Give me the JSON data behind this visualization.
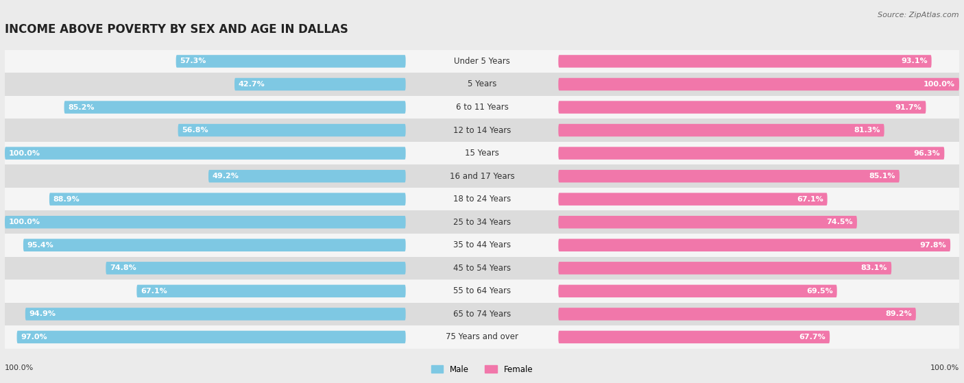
{
  "title": "INCOME ABOVE POVERTY BY SEX AND AGE IN DALLAS",
  "source": "Source: ZipAtlas.com",
  "categories": [
    "Under 5 Years",
    "5 Years",
    "6 to 11 Years",
    "12 to 14 Years",
    "15 Years",
    "16 and 17 Years",
    "18 to 24 Years",
    "25 to 34 Years",
    "35 to 44 Years",
    "45 to 54 Years",
    "55 to 64 Years",
    "65 to 74 Years",
    "75 Years and over"
  ],
  "male_values": [
    57.3,
    42.7,
    85.2,
    56.8,
    100.0,
    49.2,
    88.9,
    100.0,
    95.4,
    74.8,
    67.1,
    94.9,
    97.0
  ],
  "female_values": [
    93.1,
    100.0,
    91.7,
    81.3,
    96.3,
    85.1,
    67.1,
    74.5,
    97.8,
    83.1,
    69.5,
    89.2,
    67.7
  ],
  "male_color": "#7ec8e3",
  "female_color": "#f177aa",
  "male_label": "Male",
  "female_label": "Female",
  "x_max": 100.0,
  "bar_height": 0.55,
  "bg_color": "#ebebeb",
  "row_colors": [
    "#f5f5f5",
    "#dcdcdc"
  ],
  "title_fontsize": 12,
  "label_fontsize": 8.5,
  "value_fontsize": 8,
  "source_fontsize": 8
}
